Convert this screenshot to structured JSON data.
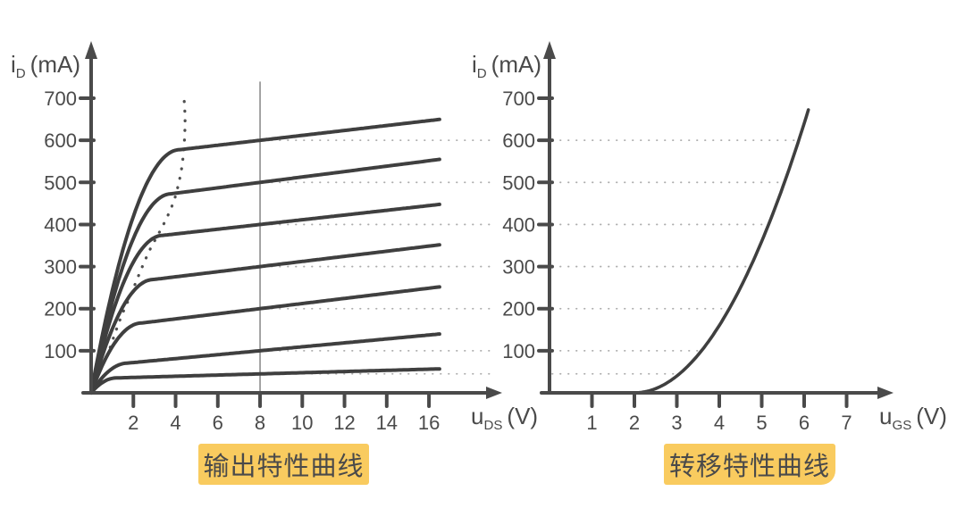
{
  "page": {
    "background": "#ffffff"
  },
  "colors": {
    "ink": "#4a4a4a",
    "curve": "#3f3f3f",
    "marker_line": "#7d7d7d",
    "connector_dots": "#ababab",
    "locus_dots": "#4f4f4f",
    "caption_bg": "#F9CB5F",
    "caption_text": "#4a4a4a"
  },
  "chart_data": [
    {
      "id": "output-characteristics",
      "type": "line",
      "title": "输出特性曲线",
      "xlabel": {
        "base": "u",
        "sub": "DS",
        "unit": "(V)"
      },
      "ylabel": {
        "base": "i",
        "sub": "D",
        "unit": "(mA)"
      },
      "x_ticks": [
        2,
        4,
        6,
        8,
        10,
        12,
        14,
        16
      ],
      "y_ticks": [
        100,
        200,
        300,
        400,
        500,
        600,
        700
      ],
      "xlim": [
        0,
        17.5
      ],
      "ylim": [
        0,
        780
      ],
      "grid": false,
      "x_max_data": 16.55,
      "marker_line_x": 8,
      "connector_levels_ma": [
        600,
        500,
        400,
        300,
        200,
        100,
        45
      ],
      "series": [
        {
          "i_at_8v": 600,
          "i_end": 650,
          "v_knee": 4.2
        },
        {
          "i_at_8v": 500,
          "i_end": 555,
          "v_knee": 3.8
        },
        {
          "i_at_8v": 400,
          "i_end": 448,
          "v_knee": 3.4
        },
        {
          "i_at_8v": 300,
          "i_end": 352,
          "v_knee": 2.95
        },
        {
          "i_at_8v": 200,
          "i_end": 252,
          "v_knee": 2.4
        },
        {
          "i_at_8v": 100,
          "i_end": 140,
          "v_knee": 1.75
        },
        {
          "i_at_8v": 45,
          "i_end": 57,
          "v_knee": 1.2
        }
      ],
      "boundary_locus_points_u_ma": [
        [
          0.9,
          108
        ],
        [
          1.1,
          137
        ],
        [
          1.3,
          165
        ],
        [
          1.55,
          196
        ],
        [
          1.8,
          224
        ],
        [
          2.05,
          254
        ],
        [
          2.3,
          285
        ],
        [
          2.55,
          315
        ],
        [
          2.8,
          342
        ],
        [
          3.05,
          365
        ],
        [
          3.3,
          388
        ],
        [
          3.55,
          412
        ],
        [
          3.8,
          440
        ],
        [
          4.0,
          468
        ],
        [
          4.15,
          498
        ],
        [
          4.27,
          527
        ],
        [
          4.35,
          558
        ],
        [
          4.41,
          590
        ],
        [
          4.44,
          622
        ],
        [
          4.45,
          655
        ],
        [
          4.42,
          688
        ],
        [
          4.37,
          712
        ]
      ]
    },
    {
      "id": "transfer-characteristic",
      "type": "line",
      "title": "转移特性曲线",
      "xlabel": {
        "base": "u",
        "sub": "GS",
        "unit": "(V)"
      },
      "ylabel": {
        "base": "i",
        "sub": "D",
        "unit": "(mA)"
      },
      "x_ticks": [
        1,
        2,
        3,
        4,
        5,
        6,
        7
      ],
      "y_ticks": [
        100,
        200,
        300,
        400,
        500,
        600,
        700
      ],
      "xlim": [
        0,
        8
      ],
      "ylim": [
        0,
        780
      ],
      "grid": false,
      "curve": {
        "threshold_v": 2,
        "k_ma_per_v2": 40,
        "u_end": 6.1,
        "i_end": 672
      }
    }
  ]
}
